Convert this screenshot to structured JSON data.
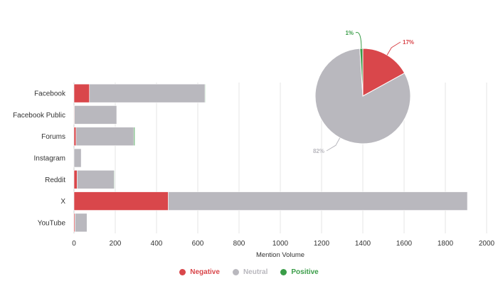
{
  "colors": {
    "negative": "#d9474b",
    "neutral": "#b9b8be",
    "positive": "#3a9d48",
    "grid": "#e6e6e6"
  },
  "chart_data": [
    {
      "type": "bar",
      "orientation": "horizontal",
      "stacked": true,
      "categories": [
        "Facebook",
        "Facebook Public",
        "Forums",
        "Instagram",
        "Reddit",
        "X",
        "YouTube"
      ],
      "series": [
        {
          "name": "Negative",
          "values": [
            75,
            2,
            10,
            0,
            15,
            457,
            5
          ]
        },
        {
          "name": "Neutral",
          "values": [
            560,
            205,
            280,
            35,
            180,
            1450,
            58
          ]
        },
        {
          "name": "Positive",
          "values": [
            2,
            0,
            5,
            0,
            1,
            0,
            0
          ]
        }
      ],
      "xlabel": "Mention Volume",
      "xlim": [
        0,
        2000
      ],
      "xticks": [
        0,
        200,
        400,
        600,
        800,
        1000,
        1200,
        1400,
        1600,
        1800,
        2000
      ],
      "grid": "vertical",
      "legend": "bottom-center"
    },
    {
      "type": "pie",
      "slices": [
        {
          "name": "Negative",
          "value": 17,
          "label": "17%"
        },
        {
          "name": "Neutral",
          "value": 82,
          "label": "82%"
        },
        {
          "name": "Positive",
          "value": 1,
          "label": "1%"
        }
      ]
    }
  ],
  "legend": {
    "negative": "Negative",
    "neutral": "Neutral",
    "positive": "Positive"
  }
}
